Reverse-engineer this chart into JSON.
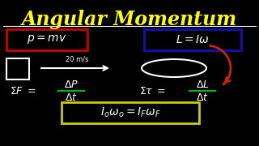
{
  "background_color": "#000000",
  "title": "Angular Momentum",
  "title_color": "#FFFF00",
  "title_fontsize": 17,
  "line_color": "#FFFFFF",
  "box_p_mv_color": "#CC0000",
  "box_L_Iw_color": "#1111BB",
  "box_conservation_color": "#CCCC00",
  "arrow_color": "#FFFFFF",
  "red_arrow_color": "#CC2200",
  "fraction_line_color": "#00BB00",
  "velocity_label": "20 m/s"
}
